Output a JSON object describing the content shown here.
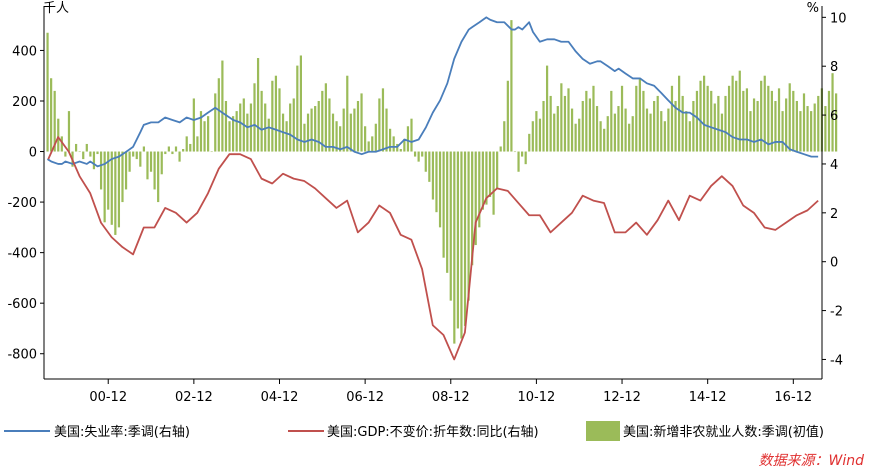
{
  "chart_data": {
    "type": "bar+line",
    "title": "",
    "left_axis": {
      "unit": "千人",
      "ylim": [
        -900,
        560
      ],
      "ticks": [
        -800,
        -600,
        -400,
        -200,
        0,
        200,
        400
      ]
    },
    "right_axis": {
      "unit": "%",
      "ylim": [
        -4.8,
        10.3
      ],
      "ticks": [
        -4,
        -2,
        0,
        2,
        4,
        6,
        8,
        10
      ]
    },
    "x_axis": {
      "range_years": [
        1999.5,
        2017.67
      ],
      "tick_labels": [
        "00-12",
        "02-12",
        "04-12",
        "06-12",
        "08-12",
        "10-12",
        "12-12",
        "14-12",
        "16-12"
      ],
      "tick_years": [
        2001.0,
        2003.0,
        2005.0,
        2007.0,
        2009.0,
        2011.0,
        2013.0,
        2015.0,
        2017.0
      ]
    },
    "series": [
      {
        "name": "美国:新增非农就业人数:季调(初值)",
        "type": "bar",
        "axis": "left",
        "color": "#9BBB59",
        "x_start": 1999.583,
        "x_step": 0.083333,
        "values": [
          470,
          290,
          240,
          130,
          60,
          -20,
          160,
          -60,
          30,
          0,
          -30,
          30,
          -20,
          -70,
          -10,
          -150,
          -280,
          -230,
          -290,
          -330,
          -300,
          -200,
          -150,
          -80,
          -20,
          -30,
          -60,
          20,
          -110,
          -80,
          -150,
          -200,
          -90,
          -10,
          20,
          -10,
          20,
          -40,
          10,
          60,
          30,
          210,
          60,
          160,
          120,
          140,
          0,
          230,
          290,
          360,
          200,
          120,
          140,
          160,
          190,
          210,
          150,
          190,
          270,
          370,
          240,
          190,
          130,
          280,
          300,
          250,
          150,
          120,
          190,
          210,
          340,
          380,
          110,
          150,
          170,
          180,
          200,
          240,
          270,
          210,
          150,
          120,
          100,
          170,
          300,
          150,
          170,
          200,
          230,
          100,
          40,
          60,
          110,
          210,
          250,
          170,
          90,
          60,
          30,
          10,
          50,
          100,
          130,
          -20,
          -40,
          -20,
          -80,
          -120,
          -190,
          -240,
          -300,
          -420,
          -480,
          -590,
          -760,
          -700,
          -740,
          -690,
          -590,
          -450,
          -370,
          -300,
          -230,
          -210,
          -180,
          -250,
          -150,
          20,
          120,
          280,
          520,
          0,
          -80,
          -20,
          -50,
          70,
          120,
          160,
          130,
          200,
          340,
          220,
          150,
          180,
          270,
          220,
          250,
          170,
          110,
          130,
          200,
          240,
          210,
          260,
          180,
          120,
          90,
          140,
          240,
          150,
          180,
          260,
          170,
          110,
          140,
          260,
          290,
          240,
          170,
          150,
          200,
          220,
          160,
          120,
          170,
          260,
          200,
          300,
          220,
          160,
          120,
          200,
          240,
          280,
          300,
          260,
          240,
          190,
          220,
          150,
          220,
          260,
          300,
          280,
          320,
          240,
          250,
          160,
          210,
          200,
          280,
          300,
          260,
          240,
          200,
          250,
          160,
          210,
          270,
          240,
          200,
          160,
          230,
          180,
          160,
          190,
          220,
          250,
          180,
          240,
          310,
          230
        ]
      },
      {
        "name": "美国:失业率:季调(右轴)",
        "type": "line",
        "axis": "right",
        "color": "#4A7EBB",
        "points": [
          [
            1999.58,
            4.2
          ],
          [
            1999.67,
            4.1
          ],
          [
            1999.83,
            4.0
          ],
          [
            1999.92,
            4.0
          ],
          [
            2000.0,
            4.1
          ],
          [
            2000.17,
            4.0
          ],
          [
            2000.33,
            4.1
          ],
          [
            2000.5,
            4.0
          ],
          [
            2000.58,
            4.1
          ],
          [
            2000.75,
            3.9
          ],
          [
            2000.92,
            4.0
          ],
          [
            2001.08,
            4.2
          ],
          [
            2001.25,
            4.3
          ],
          [
            2001.42,
            4.5
          ],
          [
            2001.58,
            4.7
          ],
          [
            2001.75,
            5.3
          ],
          [
            2001.83,
            5.6
          ],
          [
            2002.0,
            5.7
          ],
          [
            2002.17,
            5.7
          ],
          [
            2002.33,
            5.9
          ],
          [
            2002.5,
            5.8
          ],
          [
            2002.67,
            5.7
          ],
          [
            2002.83,
            5.9
          ],
          [
            2003.0,
            5.8
          ],
          [
            2003.17,
            5.9
          ],
          [
            2003.33,
            6.1
          ],
          [
            2003.5,
            6.3
          ],
          [
            2003.58,
            6.2
          ],
          [
            2003.75,
            6.0
          ],
          [
            2003.92,
            5.8
          ],
          [
            2004.08,
            5.7
          ],
          [
            2004.25,
            5.5
          ],
          [
            2004.42,
            5.6
          ],
          [
            2004.58,
            5.4
          ],
          [
            2004.75,
            5.5
          ],
          [
            2004.92,
            5.4
          ],
          [
            2005.08,
            5.3
          ],
          [
            2005.25,
            5.2
          ],
          [
            2005.42,
            5.0
          ],
          [
            2005.58,
            4.9
          ],
          [
            2005.75,
            5.0
          ],
          [
            2005.92,
            4.9
          ],
          [
            2006.08,
            4.7
          ],
          [
            2006.25,
            4.7
          ],
          [
            2006.42,
            4.6
          ],
          [
            2006.58,
            4.7
          ],
          [
            2006.75,
            4.5
          ],
          [
            2006.92,
            4.4
          ],
          [
            2007.08,
            4.5
          ],
          [
            2007.25,
            4.5
          ],
          [
            2007.42,
            4.6
          ],
          [
            2007.58,
            4.7
          ],
          [
            2007.75,
            4.7
          ],
          [
            2007.92,
            5.0
          ],
          [
            2008.08,
            4.9
          ],
          [
            2008.25,
            5.0
          ],
          [
            2008.42,
            5.5
          ],
          [
            2008.58,
            6.1
          ],
          [
            2008.75,
            6.6
          ],
          [
            2008.92,
            7.3
          ],
          [
            2009.08,
            8.3
          ],
          [
            2009.25,
            9.0
          ],
          [
            2009.42,
            9.5
          ],
          [
            2009.5,
            9.6
          ],
          [
            2009.67,
            9.8
          ],
          [
            2009.83,
            10.0
          ],
          [
            2009.92,
            9.9
          ],
          [
            2010.08,
            9.8
          ],
          [
            2010.25,
            9.8
          ],
          [
            2010.42,
            9.5
          ],
          [
            2010.5,
            9.5
          ],
          [
            2010.58,
            9.6
          ],
          [
            2010.67,
            9.5
          ],
          [
            2010.83,
            9.8
          ],
          [
            2010.92,
            9.4
          ],
          [
            2011.08,
            9.0
          ],
          [
            2011.25,
            9.1
          ],
          [
            2011.42,
            9.1
          ],
          [
            2011.58,
            9.0
          ],
          [
            2011.75,
            9.0
          ],
          [
            2011.92,
            8.6
          ],
          [
            2012.08,
            8.3
          ],
          [
            2012.25,
            8.1
          ],
          [
            2012.42,
            8.2
          ],
          [
            2012.5,
            8.2
          ],
          [
            2012.67,
            8.0
          ],
          [
            2012.83,
            7.8
          ],
          [
            2012.92,
            7.9
          ],
          [
            2013.08,
            7.7
          ],
          [
            2013.25,
            7.5
          ],
          [
            2013.42,
            7.5
          ],
          [
            2013.58,
            7.3
          ],
          [
            2013.75,
            7.2
          ],
          [
            2013.92,
            6.9
          ],
          [
            2014.08,
            6.6
          ],
          [
            2014.25,
            6.3
          ],
          [
            2014.42,
            6.1
          ],
          [
            2014.58,
            6.1
          ],
          [
            2014.75,
            5.9
          ],
          [
            2014.92,
            5.6
          ],
          [
            2015.08,
            5.5
          ],
          [
            2015.25,
            5.4
          ],
          [
            2015.42,
            5.3
          ],
          [
            2015.58,
            5.1
          ],
          [
            2015.75,
            5.0
          ],
          [
            2015.92,
            5.0
          ],
          [
            2016.08,
            4.9
          ],
          [
            2016.25,
            5.0
          ],
          [
            2016.42,
            4.8
          ],
          [
            2016.58,
            4.9
          ],
          [
            2016.75,
            4.9
          ],
          [
            2016.92,
            4.6
          ],
          [
            2017.08,
            4.5
          ],
          [
            2017.25,
            4.4
          ],
          [
            2017.42,
            4.3
          ],
          [
            2017.58,
            4.3
          ]
        ]
      },
      {
        "name": "美国:GDP:不变价:折年数:同比(右轴)",
        "type": "line",
        "axis": "right",
        "color": "#C0504D",
        "points": [
          [
            1999.6,
            4.2
          ],
          [
            1999.83,
            5.1
          ],
          [
            2000.08,
            4.5
          ],
          [
            2000.33,
            3.5
          ],
          [
            2000.58,
            2.8
          ],
          [
            2000.83,
            1.6
          ],
          [
            2001.08,
            1.0
          ],
          [
            2001.33,
            0.6
          ],
          [
            2001.58,
            0.3
          ],
          [
            2001.83,
            1.4
          ],
          [
            2002.08,
            1.4
          ],
          [
            2002.33,
            2.2
          ],
          [
            2002.58,
            2.0
          ],
          [
            2002.83,
            1.6
          ],
          [
            2003.08,
            2.0
          ],
          [
            2003.33,
            2.8
          ],
          [
            2003.58,
            3.8
          ],
          [
            2003.83,
            4.4
          ],
          [
            2004.08,
            4.4
          ],
          [
            2004.33,
            4.2
          ],
          [
            2004.58,
            3.4
          ],
          [
            2004.83,
            3.2
          ],
          [
            2005.08,
            3.6
          ],
          [
            2005.33,
            3.4
          ],
          [
            2005.58,
            3.3
          ],
          [
            2005.83,
            3.0
          ],
          [
            2006.08,
            2.6
          ],
          [
            2006.33,
            2.2
          ],
          [
            2006.58,
            2.5
          ],
          [
            2006.83,
            1.2
          ],
          [
            2007.08,
            1.6
          ],
          [
            2007.33,
            2.3
          ],
          [
            2007.58,
            2.0
          ],
          [
            2007.83,
            1.1
          ],
          [
            2008.08,
            0.9
          ],
          [
            2008.33,
            -0.3
          ],
          [
            2008.58,
            -2.6
          ],
          [
            2008.83,
            -3.0
          ],
          [
            2009.08,
            -4.0
          ],
          [
            2009.33,
            -2.9
          ],
          [
            2009.58,
            1.6
          ],
          [
            2009.83,
            2.6
          ],
          [
            2010.08,
            3.0
          ],
          [
            2010.33,
            2.9
          ],
          [
            2010.58,
            2.4
          ],
          [
            2010.83,
            1.9
          ],
          [
            2011.08,
            1.9
          ],
          [
            2011.33,
            1.2
          ],
          [
            2011.58,
            1.6
          ],
          [
            2011.83,
            2.0
          ],
          [
            2012.08,
            2.7
          ],
          [
            2012.33,
            2.5
          ],
          [
            2012.58,
            2.4
          ],
          [
            2012.83,
            1.2
          ],
          [
            2013.08,
            1.2
          ],
          [
            2013.33,
            1.6
          ],
          [
            2013.58,
            1.1
          ],
          [
            2013.83,
            1.7
          ],
          [
            2014.08,
            2.5
          ],
          [
            2014.33,
            1.7
          ],
          [
            2014.58,
            2.7
          ],
          [
            2014.83,
            2.5
          ],
          [
            2015.08,
            3.1
          ],
          [
            2015.33,
            3.5
          ],
          [
            2015.58,
            3.1
          ],
          [
            2015.83,
            2.3
          ],
          [
            2016.08,
            2.0
          ],
          [
            2016.33,
            1.4
          ],
          [
            2016.58,
            1.3
          ],
          [
            2016.83,
            1.6
          ],
          [
            2017.08,
            1.9
          ],
          [
            2017.33,
            2.1
          ],
          [
            2017.58,
            2.5
          ]
        ]
      }
    ],
    "legend_position": "bottom",
    "grid": false,
    "source": "数据来源：Wind"
  }
}
